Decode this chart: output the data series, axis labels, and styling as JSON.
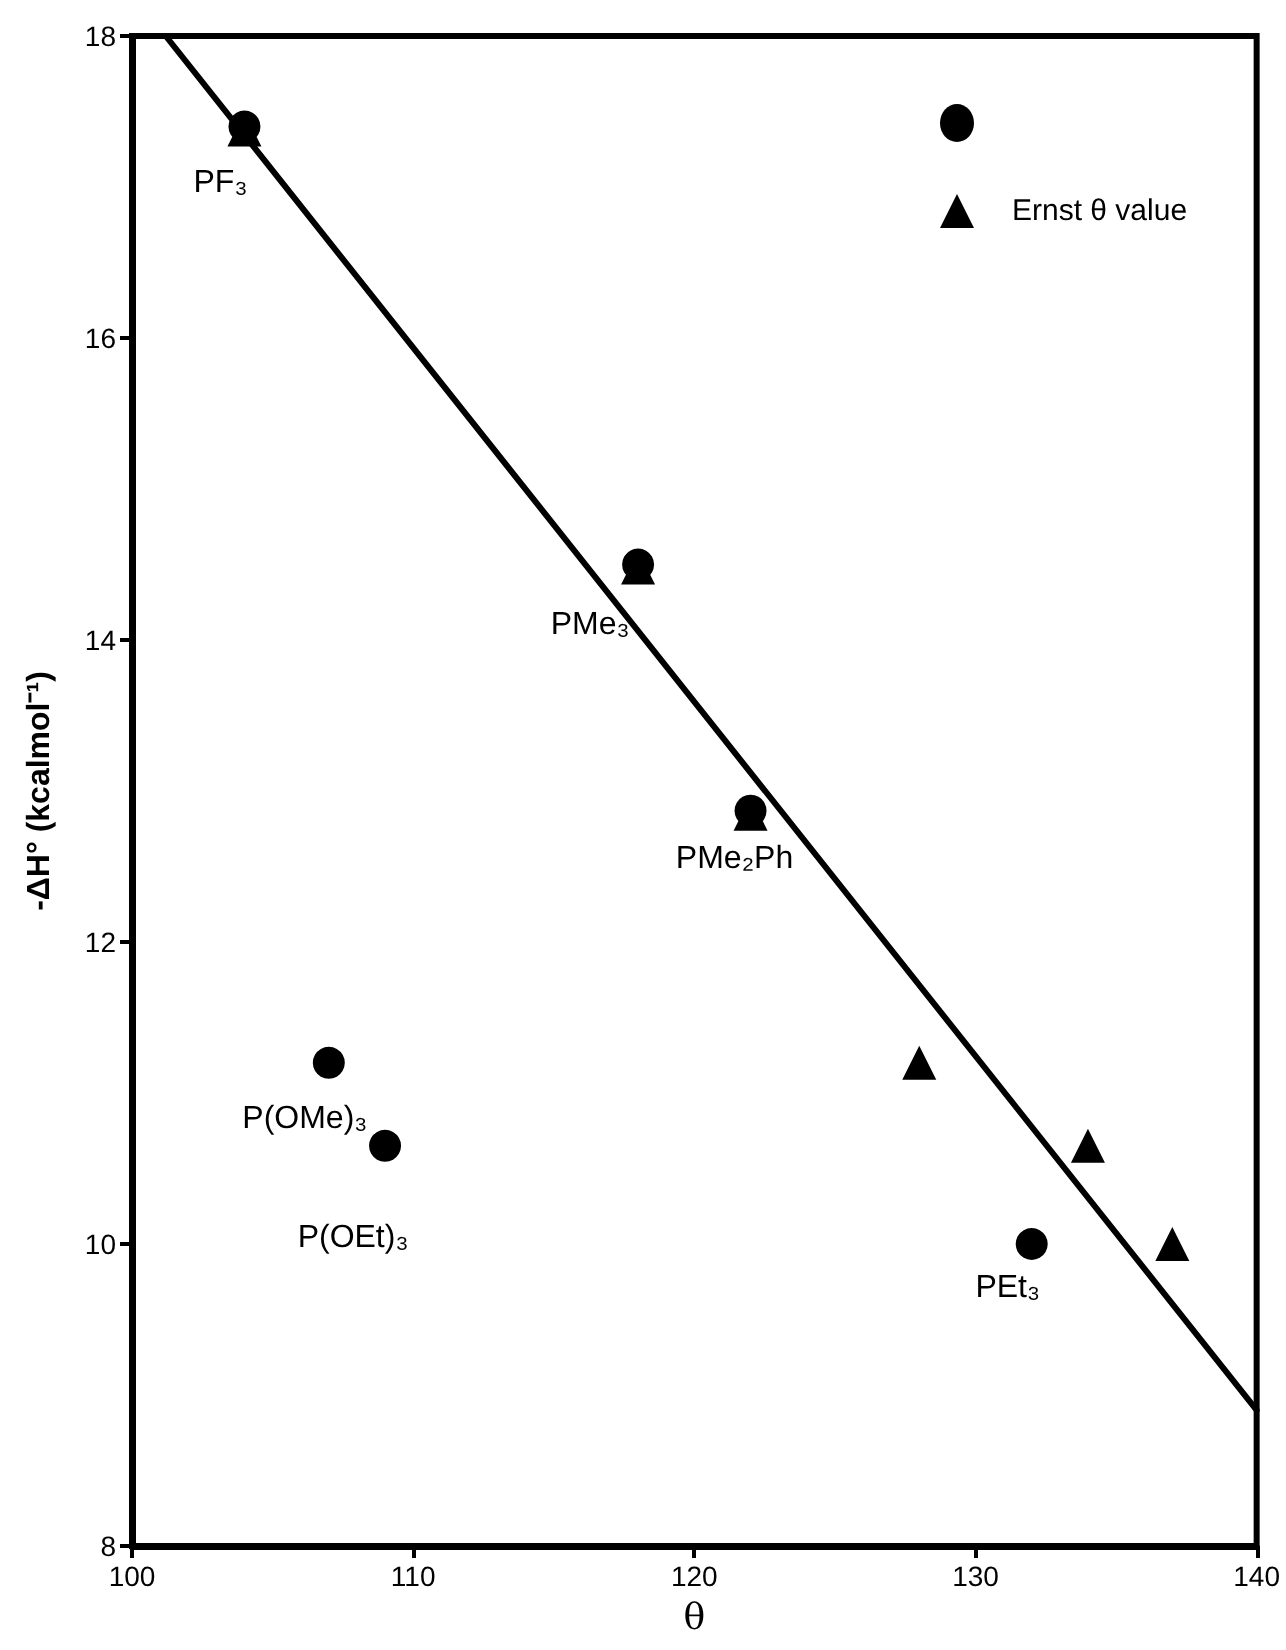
{
  "chart_data": {
    "type": "scatter",
    "xlabel": "θ",
    "ylabel": "-ΔH° (kcalmol⁻¹)",
    "series": [
      {
        "marker": "circle",
        "color": "#000000",
        "x": [
          104,
          118,
          122,
          107,
          109,
          132
        ],
        "values": [
          17.4,
          14.5,
          12.87,
          11.2,
          10.65,
          10.0
        ]
      },
      {
        "name": "Ernst θ value",
        "marker": "triangle",
        "color": "#000000",
        "x": [
          104,
          118,
          122,
          128,
          134,
          137
        ],
        "values": [
          17.38,
          14.48,
          12.85,
          11.2,
          10.65,
          10.0
        ]
      },
      {
        "type": "line",
        "marker": "none",
        "color": "#000000",
        "x": [
          101.2,
          140
        ],
        "values": [
          18.0,
          8.9
        ]
      }
    ],
    "annotations": [
      {
        "text": "PF₃",
        "x": 104,
        "y": 17.4
      },
      {
        "text": "PMe₃",
        "x": 118,
        "y": 14.5
      },
      {
        "text": "PMe₂Ph",
        "x": 122,
        "y": 12.87
      },
      {
        "text": "P(OMe)₃",
        "x": 107,
        "y": 11.2
      },
      {
        "text": "P(OEt)₃",
        "x": 109,
        "y": 10.65
      },
      {
        "text": "PEt₃",
        "x": 132,
        "y": 10.0
      }
    ],
    "xlim": [
      100,
      140
    ],
    "xticks": [
      100,
      110,
      120,
      130,
      140
    ],
    "ylim": [
      8,
      18
    ],
    "yticks": [
      8,
      10,
      12,
      14,
      16,
      18
    ],
    "grid": false,
    "legend": "top right"
  }
}
